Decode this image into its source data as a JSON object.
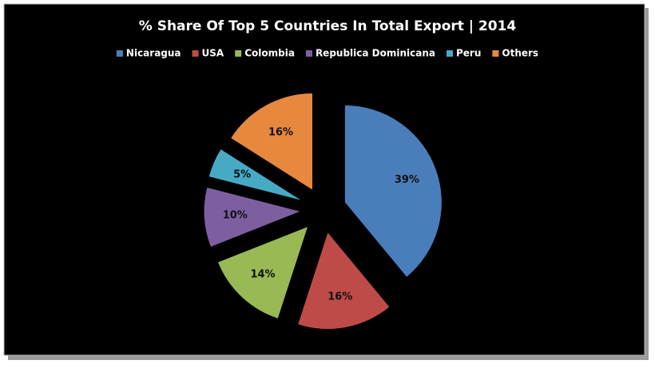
{
  "chart_data": {
    "type": "pie",
    "title": "% Share Of Top 5 Countries In Total Export | 2014",
    "categories": [
      "Nicaragua",
      "USA",
      "Colombia",
      "Republica Dominicana",
      "Peru",
      "Others"
    ],
    "values": [
      39,
      16,
      14,
      10,
      5,
      16
    ],
    "value_labels": [
      "39%",
      "16%",
      "14%",
      "10%",
      "5%",
      "16%"
    ],
    "colors": [
      "#4a7ebb",
      "#be4b48",
      "#98b954",
      "#7d5fa0",
      "#46aac5",
      "#e6883e"
    ],
    "legend": "top"
  }
}
